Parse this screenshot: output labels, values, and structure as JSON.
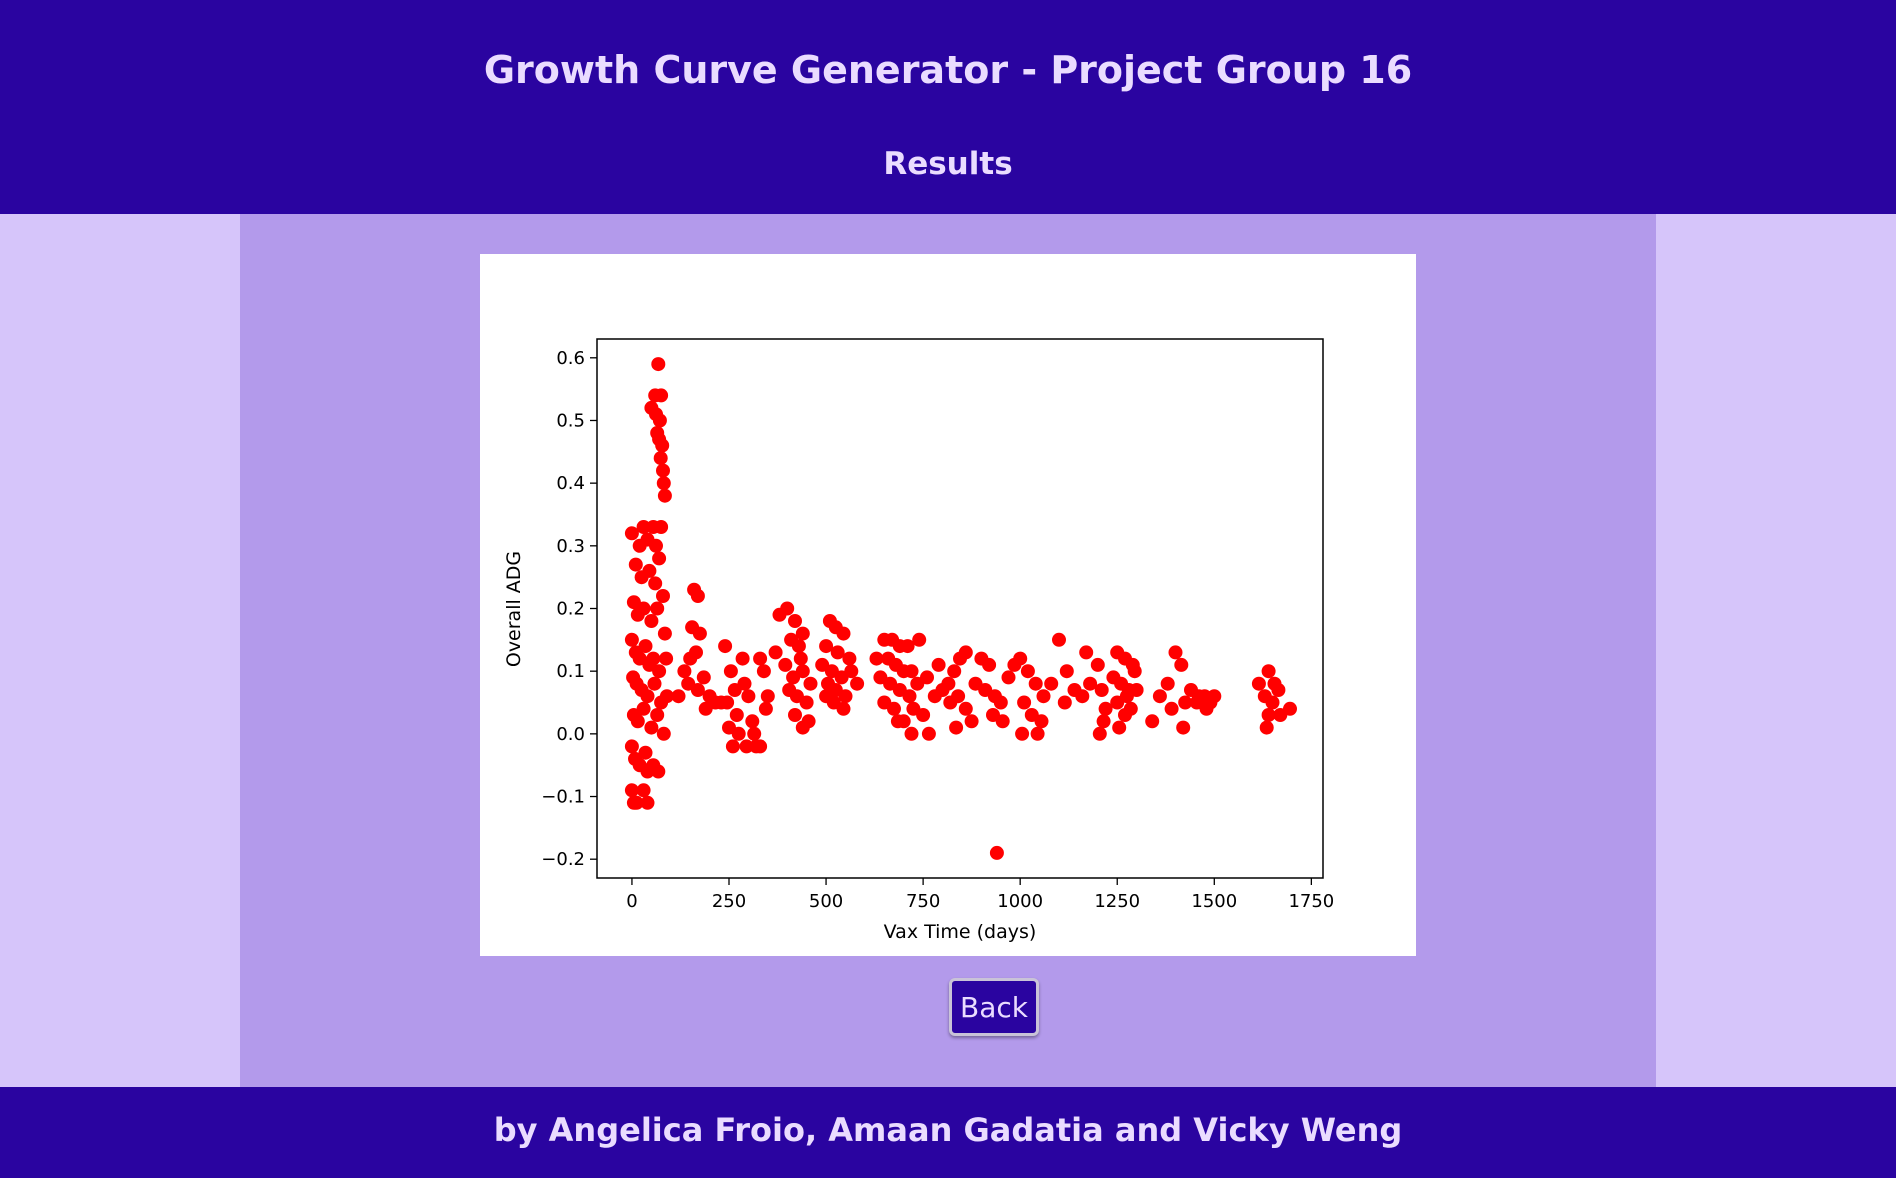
{
  "header": {
    "title": "Growth Curve Generator - Project Group 16",
    "subtitle": "Results"
  },
  "back_button": {
    "label": "Back"
  },
  "footer": {
    "credits": "by Angelica Froio, Amaan Gadatia and Vicky Weng"
  },
  "colors": {
    "header_bg": "#2a04a0",
    "side_bg": "#d6c5fa",
    "main_bg": "#b39aeb",
    "marker": "#ff0000"
  },
  "chart_data": {
    "type": "scatter",
    "title": "",
    "xlabel": "Vax Time (days)",
    "ylabel": "Overall ADG",
    "xlim": [
      -90,
      1780
    ],
    "ylim": [
      -0.23,
      0.63
    ],
    "x_ticks": [
      0,
      250,
      500,
      750,
      1000,
      1250,
      1500,
      1750
    ],
    "y_ticks": [
      -0.2,
      -0.1,
      0.0,
      0.1,
      0.2,
      0.3,
      0.4,
      0.5,
      0.6
    ],
    "x_tick_labels": [
      "0",
      "250",
      "500",
      "750",
      "1000",
      "1250",
      "1500",
      "1750"
    ],
    "y_tick_labels": [
      "−0.2",
      "−0.1",
      "0.0",
      "0.1",
      "0.2",
      "0.3",
      "0.4",
      "0.5",
      "0.6"
    ],
    "grid": false,
    "marker_color": "#ff0000",
    "series": [
      {
        "values": [
          [
            68,
            0.59
          ],
          [
            60,
            0.54
          ],
          [
            75,
            0.54
          ],
          [
            50,
            0.52
          ],
          [
            62,
            0.51
          ],
          [
            72,
            0.5
          ],
          [
            65,
            0.48
          ],
          [
            70,
            0.47
          ],
          [
            78,
            0.46
          ],
          [
            74,
            0.44
          ],
          [
            80,
            0.42
          ],
          [
            82,
            0.4
          ],
          [
            85,
            0.38
          ],
          [
            0,
            0.32
          ],
          [
            30,
            0.33
          ],
          [
            55,
            0.33
          ],
          [
            75,
            0.33
          ],
          [
            40,
            0.31
          ],
          [
            62,
            0.3
          ],
          [
            20,
            0.3
          ],
          [
            10,
            0.27
          ],
          [
            25,
            0.25
          ],
          [
            45,
            0.26
          ],
          [
            60,
            0.24
          ],
          [
            70,
            0.28
          ],
          [
            80,
            0.22
          ],
          [
            5,
            0.21
          ],
          [
            15,
            0.19
          ],
          [
            30,
            0.2
          ],
          [
            50,
            0.18
          ],
          [
            65,
            0.2
          ],
          [
            85,
            0.16
          ],
          [
            0,
            0.15
          ],
          [
            10,
            0.13
          ],
          [
            20,
            0.12
          ],
          [
            35,
            0.14
          ],
          [
            45,
            0.11
          ],
          [
            55,
            0.12
          ],
          [
            70,
            0.1
          ],
          [
            88,
            0.12
          ],
          [
            3,
            0.09
          ],
          [
            12,
            0.08
          ],
          [
            25,
            0.07
          ],
          [
            40,
            0.06
          ],
          [
            58,
            0.08
          ],
          [
            75,
            0.05
          ],
          [
            90,
            0.06
          ],
          [
            5,
            0.03
          ],
          [
            15,
            0.02
          ],
          [
            30,
            0.04
          ],
          [
            50,
            0.01
          ],
          [
            65,
            0.03
          ],
          [
            82,
            0.0
          ],
          [
            0,
            -0.02
          ],
          [
            8,
            -0.04
          ],
          [
            20,
            -0.05
          ],
          [
            35,
            -0.03
          ],
          [
            55,
            -0.05
          ],
          [
            68,
            -0.06
          ],
          [
            40,
            -0.06
          ],
          [
            0,
            -0.09
          ],
          [
            12,
            -0.11
          ],
          [
            30,
            -0.09
          ],
          [
            40,
            -0.11
          ],
          [
            5,
            -0.11
          ],
          [
            160,
            0.23
          ],
          [
            170,
            0.22
          ],
          [
            155,
            0.17
          ],
          [
            175,
            0.16
          ],
          [
            165,
            0.13
          ],
          [
            150,
            0.12
          ],
          [
            135,
            0.1
          ],
          [
            145,
            0.08
          ],
          [
            170,
            0.07
          ],
          [
            185,
            0.09
          ],
          [
            200,
            0.06
          ],
          [
            215,
            0.05
          ],
          [
            190,
            0.04
          ],
          [
            230,
            0.05
          ],
          [
            120,
            0.06
          ],
          [
            240,
            0.14
          ],
          [
            255,
            0.1
          ],
          [
            265,
            0.07
          ],
          [
            245,
            0.05
          ],
          [
            270,
            0.03
          ],
          [
            250,
            0.01
          ],
          [
            260,
            -0.02
          ],
          [
            275,
            0.0
          ],
          [
            285,
            0.12
          ],
          [
            290,
            0.08
          ],
          [
            300,
            0.06
          ],
          [
            310,
            0.02
          ],
          [
            295,
            -0.02
          ],
          [
            320,
            -0.02
          ],
          [
            330,
            -0.02
          ],
          [
            315,
            0.0
          ],
          [
            340,
            0.1
          ],
          [
            330,
            0.12
          ],
          [
            350,
            0.06
          ],
          [
            345,
            0.04
          ],
          [
            370,
            0.13
          ],
          [
            380,
            0.19
          ],
          [
            400,
            0.2
          ],
          [
            420,
            0.18
          ],
          [
            440,
            0.16
          ],
          [
            410,
            0.15
          ],
          [
            430,
            0.14
          ],
          [
            395,
            0.11
          ],
          [
            415,
            0.09
          ],
          [
            440,
            0.1
          ],
          [
            460,
            0.08
          ],
          [
            405,
            0.07
          ],
          [
            425,
            0.06
          ],
          [
            450,
            0.05
          ],
          [
            420,
            0.03
          ],
          [
            440,
            0.01
          ],
          [
            455,
            0.02
          ],
          [
            435,
            0.12
          ],
          [
            510,
            0.18
          ],
          [
            525,
            0.17
          ],
          [
            545,
            0.16
          ],
          [
            500,
            0.14
          ],
          [
            530,
            0.13
          ],
          [
            560,
            0.12
          ],
          [
            490,
            0.11
          ],
          [
            515,
            0.1
          ],
          [
            540,
            0.09
          ],
          [
            565,
            0.1
          ],
          [
            505,
            0.08
          ],
          [
            525,
            0.07
          ],
          [
            550,
            0.06
          ],
          [
            520,
            0.05
          ],
          [
            545,
            0.04
          ],
          [
            500,
            0.06
          ],
          [
            580,
            0.08
          ],
          [
            650,
            0.15
          ],
          [
            670,
            0.15
          ],
          [
            690,
            0.14
          ],
          [
            710,
            0.14
          ],
          [
            630,
            0.12
          ],
          [
            660,
            0.12
          ],
          [
            680,
            0.11
          ],
          [
            700,
            0.1
          ],
          [
            720,
            0.1
          ],
          [
            640,
            0.09
          ],
          [
            665,
            0.08
          ],
          [
            690,
            0.07
          ],
          [
            715,
            0.06
          ],
          [
            735,
            0.08
          ],
          [
            650,
            0.05
          ],
          [
            675,
            0.04
          ],
          [
            700,
            0.02
          ],
          [
            725,
            0.04
          ],
          [
            750,
            0.03
          ],
          [
            720,
            0.0
          ],
          [
            765,
            0.0
          ],
          [
            685,
            0.02
          ],
          [
            740,
            0.15
          ],
          [
            760,
            0.09
          ],
          [
            780,
            0.06
          ],
          [
            800,
            0.07
          ],
          [
            820,
            0.05
          ],
          [
            790,
            0.11
          ],
          [
            845,
            0.12
          ],
          [
            830,
            0.1
          ],
          [
            815,
            0.08
          ],
          [
            840,
            0.06
          ],
          [
            860,
            0.04
          ],
          [
            875,
            0.02
          ],
          [
            835,
            0.01
          ],
          [
            860,
            0.13
          ],
          [
            900,
            0.12
          ],
          [
            920,
            0.11
          ],
          [
            885,
            0.08
          ],
          [
            910,
            0.07
          ],
          [
            935,
            0.06
          ],
          [
            950,
            0.05
          ],
          [
            930,
            0.03
          ],
          [
            955,
            0.02
          ],
          [
            970,
            0.09
          ],
          [
            985,
            0.11
          ],
          [
            1000,
            0.12
          ],
          [
            1020,
            0.1
          ],
          [
            1040,
            0.08
          ],
          [
            1060,
            0.06
          ],
          [
            1010,
            0.05
          ],
          [
            1030,
            0.03
          ],
          [
            1055,
            0.02
          ],
          [
            1005,
            0.0
          ],
          [
            1045,
            0.0
          ],
          [
            1080,
            0.08
          ],
          [
            1100,
            0.15
          ],
          [
            1120,
            0.1
          ],
          [
            1140,
            0.07
          ],
          [
            1115,
            0.05
          ],
          [
            1160,
            0.06
          ],
          [
            1180,
            0.08
          ],
          [
            1200,
            0.11
          ],
          [
            1210,
            0.07
          ],
          [
            1220,
            0.04
          ],
          [
            1215,
            0.02
          ],
          [
            1205,
            0.0
          ],
          [
            1170,
            0.13
          ],
          [
            1250,
            0.13
          ],
          [
            1270,
            0.12
          ],
          [
            1290,
            0.11
          ],
          [
            1240,
            0.09
          ],
          [
            1260,
            0.08
          ],
          [
            1280,
            0.07
          ],
          [
            1300,
            0.07
          ],
          [
            1250,
            0.05
          ],
          [
            1270,
            0.03
          ],
          [
            1255,
            0.01
          ],
          [
            1285,
            0.04
          ],
          [
            1295,
            0.1
          ],
          [
            1275,
            0.06
          ],
          [
            1360,
            0.06
          ],
          [
            1380,
            0.08
          ],
          [
            1400,
            0.13
          ],
          [
            1415,
            0.11
          ],
          [
            1390,
            0.04
          ],
          [
            1425,
            0.05
          ],
          [
            1420,
            0.01
          ],
          [
            1340,
            0.02
          ],
          [
            1440,
            0.07
          ],
          [
            1460,
            0.06
          ],
          [
            1475,
            0.06
          ],
          [
            1490,
            0.05
          ],
          [
            1500,
            0.06
          ],
          [
            1455,
            0.05
          ],
          [
            1480,
            0.04
          ],
          [
            1615,
            0.08
          ],
          [
            1640,
            0.1
          ],
          [
            1655,
            0.08
          ],
          [
            1665,
            0.07
          ],
          [
            1630,
            0.06
          ],
          [
            1650,
            0.05
          ],
          [
            1640,
            0.03
          ],
          [
            1635,
            0.01
          ],
          [
            1670,
            0.03
          ],
          [
            1695,
            0.04
          ],
          [
            940,
            -0.19
          ]
        ]
      }
    ]
  }
}
